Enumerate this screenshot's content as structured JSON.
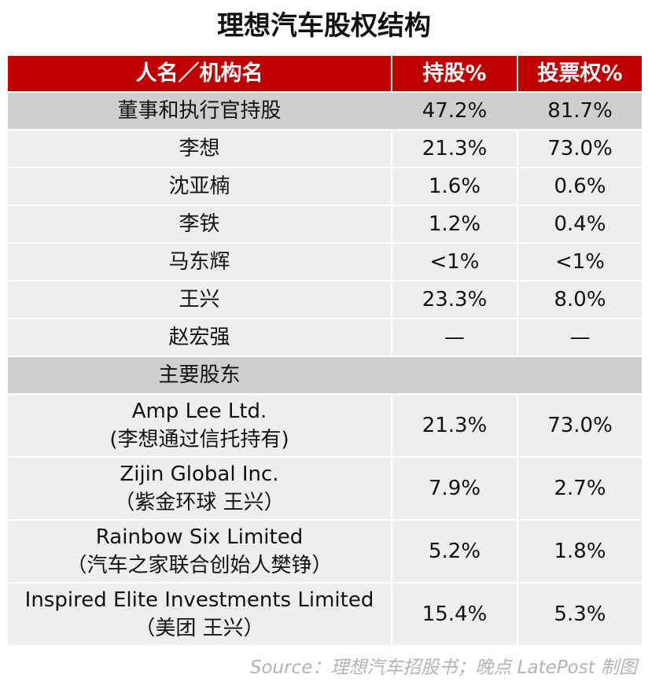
{
  "title": "理想汽车股权结构",
  "header": {
    "name": "人名／机构名",
    "stake": "持股%",
    "voting": "投票权%"
  },
  "rows": [
    {
      "name": "董事和执行官持股",
      "stake": "47.2%",
      "voting": "81.7%"
    },
    {
      "name": "李想",
      "stake": "21.3%",
      "voting": "73.0%"
    },
    {
      "name": "沈亚楠",
      "stake": "1.6%",
      "voting": "0.6%"
    },
    {
      "name": "李铁",
      "stake": "1.2%",
      "voting": "0.4%"
    },
    {
      "name": "马东辉",
      "stake": "<1%",
      "voting": "<1%"
    },
    {
      "name": "王兴",
      "stake": "23.3%",
      "voting": "8.0%"
    },
    {
      "name": "赵宏强",
      "stake": "—",
      "voting": "—"
    },
    {
      "name": "主要股东",
      "stake": "",
      "voting": ""
    },
    {
      "name": "Amp Lee Ltd.",
      "sub": "(李想通过信托持有)",
      "stake": "21.3%",
      "voting": "73.0%"
    },
    {
      "name": "Zijin Global Inc.",
      "sub": "（紫金环球 王兴）",
      "stake": "7.9%",
      "voting": "2.7%"
    },
    {
      "name": "Rainbow Six Limited",
      "sub": "（汽车之家联合创始人樊铮）",
      "stake": "5.2%",
      "voting": "1.8%"
    },
    {
      "name": "Inspired Elite Investments Limited",
      "sub": "（美团 王兴）",
      "stake": "15.4%",
      "voting": "5.3%"
    }
  ],
  "source": "Source：理想汽车招股书；晚点 LatePost 制图",
  "colors": {
    "header_bg": "#c00000",
    "section_bg": "#cfcfcf",
    "row_bg": "#eeeeee",
    "source_text": "#b3b3b3"
  }
}
